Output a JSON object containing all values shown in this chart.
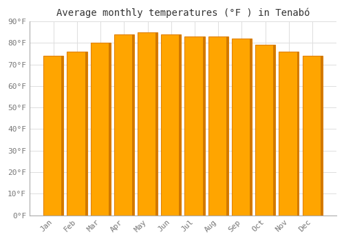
{
  "title": "Average monthly temperatures (°F ) in Tenabó",
  "months": [
    "Jan",
    "Feb",
    "Mar",
    "Apr",
    "May",
    "Jun",
    "Jul",
    "Aug",
    "Sep",
    "Oct",
    "Nov",
    "Dec"
  ],
  "values": [
    74,
    76,
    80,
    84,
    85,
    84,
    83,
    83,
    82,
    79,
    76,
    74
  ],
  "bar_color_face": "#FFA500",
  "bar_color_edge": "#E08000",
  "bar_color_right": "#D07800",
  "ylim": [
    0,
    90
  ],
  "yticks": [
    0,
    10,
    20,
    30,
    40,
    50,
    60,
    70,
    80,
    90
  ],
  "ytick_labels": [
    "0°F",
    "10°F",
    "20°F",
    "30°F",
    "40°F",
    "50°F",
    "60°F",
    "70°F",
    "80°F",
    "90°F"
  ],
  "background_color": "#FFFFFF",
  "grid_color": "#DDDDDD",
  "title_fontsize": 10,
  "tick_fontsize": 8,
  "bar_width": 0.85
}
